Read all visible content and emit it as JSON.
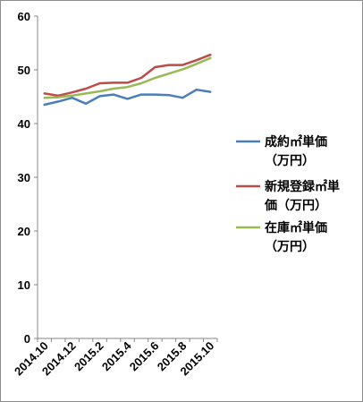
{
  "chart_data": {
    "type": "line",
    "title": "",
    "xlabel": "",
    "ylabel": "",
    "ylim": [
      0,
      60
    ],
    "yticks": [
      "0",
      "10",
      "20",
      "30",
      "40",
      "50",
      "60"
    ],
    "grid": false,
    "legend_position": "right",
    "categories": [
      "2014.10",
      "2014.11",
      "2014.12",
      "2015.1",
      "2015.2",
      "2015.3",
      "2015.4",
      "2015.5",
      "2015.6",
      "2015.7",
      "2015.8",
      "2015.9",
      "2015.10"
    ],
    "xtick_labels": [
      "2014.10",
      "2014.12",
      "2015.2",
      "2015.4",
      "2015.6",
      "2015.8",
      "2015.10"
    ],
    "series": [
      {
        "legend_lines": [
          "成約㎡単価",
          "（万円）"
        ],
        "color": "#4a7ebb",
        "values": [
          43.5,
          44.1,
          44.8,
          43.7,
          45.1,
          45.4,
          44.6,
          45.4,
          45.4,
          45.3,
          44.8,
          46.3,
          45.9
        ]
      },
      {
        "legend_lines": [
          "新規登録㎡単",
          "価（万円）"
        ],
        "color": "#be4b48",
        "values": [
          45.6,
          45.2,
          45.8,
          46.5,
          47.5,
          47.6,
          47.6,
          48.5,
          50.5,
          50.9,
          50.9,
          51.8,
          52.8
        ]
      },
      {
        "legend_lines": [
          "在庫㎡単価",
          "（万円）"
        ],
        "color": "#98b954",
        "values": [
          44.8,
          44.9,
          45.2,
          45.6,
          46.0,
          46.5,
          46.8,
          47.5,
          48.5,
          49.3,
          50.1,
          51.1,
          52.2
        ]
      }
    ]
  }
}
